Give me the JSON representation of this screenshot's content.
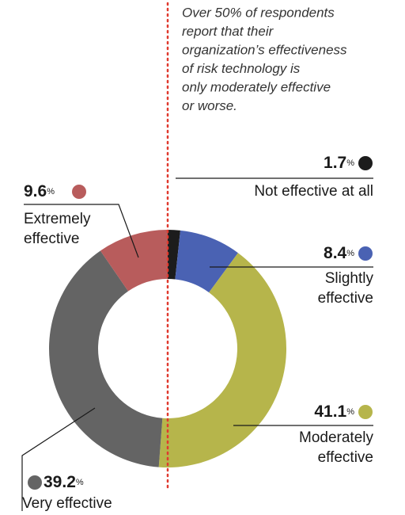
{
  "chart_data": {
    "type": "donut",
    "annotation": [
      "Over 50% of respondents",
      "report that their",
      "organization’s effectiveness",
      "of risk technology is",
      "only moderately effective",
      "or worse."
    ],
    "categories": [
      "Not effective at all",
      "Slightly effective",
      "Moderately effective",
      "Very effective",
      "Extremely effective"
    ],
    "values": [
      1.7,
      8.4,
      41.1,
      39.2,
      9.6
    ],
    "value_labels": [
      "1.7%",
      "8.4%",
      "41.1%",
      "39.2%",
      "9.6%"
    ],
    "colors": [
      "#1c1c1c",
      "#4a62b3",
      "#b6b54b",
      "#646464",
      "#b85c5c"
    ]
  }
}
